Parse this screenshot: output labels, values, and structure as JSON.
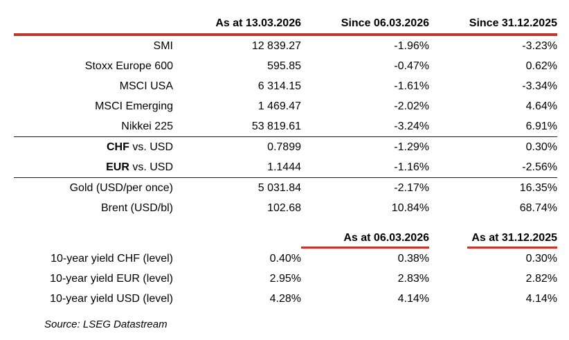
{
  "accent_color": "#C0372D",
  "rule_color": "#1A1A1A",
  "tables": {
    "main": {
      "col_headers": [
        "As at 13.03.2026",
        "Since 06.03.2026",
        "Since 31.12.2025"
      ],
      "rows": [
        {
          "label": "SMI",
          "values": [
            "12 839.27",
            "-1.96%",
            "-3.23%"
          ]
        },
        {
          "label": "Stoxx Europe 600",
          "values": [
            "595.85",
            "-0.47%",
            "0.62%"
          ]
        },
        {
          "label": "MSCI USA",
          "values": [
            "6 314.15",
            "-1.61%",
            "-3.34%"
          ]
        },
        {
          "label": "MSCI Emerging",
          "values": [
            "1 469.47",
            "-2.02%",
            "4.64%"
          ]
        },
        {
          "label": "Nikkei 225",
          "values": [
            "53 819.61",
            "-3.24%",
            "6.91%"
          ]
        },
        {
          "label_bold": "CHF",
          "label": " vs. USD",
          "values": [
            "0.7899",
            "-1.29%",
            "0.30%"
          ]
        },
        {
          "label_bold": "EUR",
          "label": " vs. USD",
          "values": [
            "1.1444",
            "-1.16%",
            "-2.56%"
          ]
        },
        {
          "label": "Gold (USD/per once)",
          "values": [
            "5 031.84",
            "-2.17%",
            "16.35%"
          ]
        },
        {
          "label": "Brent (USD/bl)",
          "values": [
            "102.68",
            "10.84%",
            "68.74%"
          ]
        }
      ]
    },
    "yields": {
      "col_headers": [
        "As at 06.03.2026",
        "As at 31.12.2025"
      ],
      "rows": [
        {
          "label": "10-year yield CHF (level)",
          "values": [
            "0.40%",
            "0.38%",
            "0.30%"
          ]
        },
        {
          "label": "10-year yield EUR (level)",
          "values": [
            "2.95%",
            "2.83%",
            "2.82%"
          ]
        },
        {
          "label": "10-year yield USD (level)",
          "values": [
            "4.28%",
            "4.14%",
            "4.14%"
          ]
        }
      ]
    }
  },
  "source_note": "Source: LSEG Datastream",
  "chart_data": [
    {
      "type": "table",
      "columns": [
        "",
        "As at 13.03.2026",
        "Since 06.03.2026",
        "Since 31.12.2025"
      ],
      "rows": [
        [
          "SMI",
          "12 839.27",
          "-1.96%",
          "-3.23%"
        ],
        [
          "Stoxx Europe 600",
          "595.85",
          "-0.47%",
          "0.62%"
        ],
        [
          "MSCI USA",
          "6 314.15",
          "-1.61%",
          "-3.34%"
        ],
        [
          "MSCI Emerging",
          "1 469.47",
          "-2.02%",
          "4.64%"
        ],
        [
          "Nikkei 225",
          "53 819.61",
          "-3.24%",
          "6.91%"
        ],
        [
          "CHF vs. USD",
          "0.7899",
          "-1.29%",
          "0.30%"
        ],
        [
          "EUR vs. USD",
          "1.1444",
          "-1.16%",
          "-2.56%"
        ],
        [
          "Gold (USD/per once)",
          "5 031.84",
          "-2.17%",
          "16.35%"
        ],
        [
          "Brent (USD/bl)",
          "102.68",
          "10.84%",
          "68.74%"
        ]
      ]
    },
    {
      "type": "table",
      "columns": [
        "",
        "",
        "As at 06.03.2026",
        "As at 31.12.2025"
      ],
      "rows": [
        [
          "10-year yield CHF (level)",
          "0.40%",
          "0.38%",
          "0.30%"
        ],
        [
          "10-year yield EUR (level)",
          "2.95%",
          "2.83%",
          "2.82%"
        ],
        [
          "10-year yield USD (level)",
          "4.28%",
          "4.14%",
          "4.14%"
        ]
      ]
    }
  ]
}
